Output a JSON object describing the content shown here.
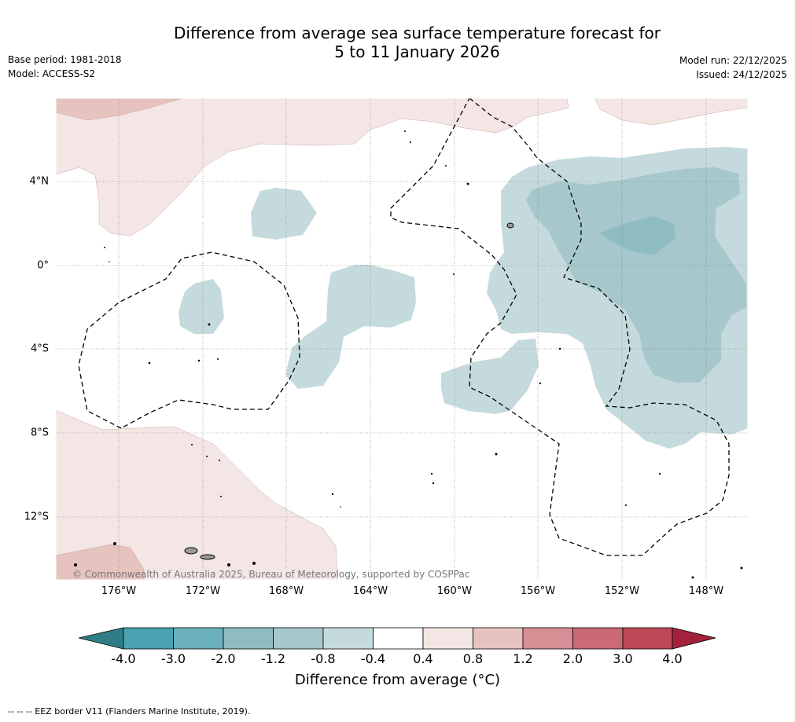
{
  "title_line1": "Difference from average sea surface temperature forecast for",
  "title_line2": "5 to 11 January 2026",
  "base_period": "Base period: 1981-2018",
  "model": "Model: ACCESS-S2",
  "model_run": "Model run: 22/12/2025",
  "issued": "Issued: 24/12/2025",
  "lon_labels": [
    "176°W",
    "172°W",
    "168°W",
    "164°W",
    "160°W",
    "156°W",
    "152°W",
    "148°W"
  ],
  "lat_labels": [
    "4°N",
    "0°",
    "4°S",
    "8°S",
    "12°S"
  ],
  "copyright": "© Commonwealth of Australia 2025, Bureau of Meteorology, supported by COSPPac",
  "colorbar": {
    "title": "Difference from average (°C)",
    "ticks": [
      "-4.0",
      "-3.0",
      "-2.0",
      "-1.2",
      "-0.8",
      "-0.4",
      "0.4",
      "0.8",
      "1.2",
      "2.0",
      "3.0",
      "4.0"
    ],
    "colors": [
      "#2f7d86",
      "#4aa3b0",
      "#6ab0bb",
      "#8fbcc3",
      "#a6c7cb",
      "#c5dadd",
      "#ffffff",
      "#f4e6e5",
      "#e6c3be",
      "#d68f94",
      "#c96a75",
      "#bd4957",
      "#a3213b"
    ]
  },
  "legend_footnote": "-- -- -- EEZ border V11 (Flanders Marine Institute, 2019).",
  "map_colors": {
    "warm_light": "#f4e6e5",
    "warm_mid": "#e6c3be",
    "cool_light": "#c5dadd",
    "cool_mid": "#a6c7cb",
    "cool_dark": "#8fbcc3"
  }
}
